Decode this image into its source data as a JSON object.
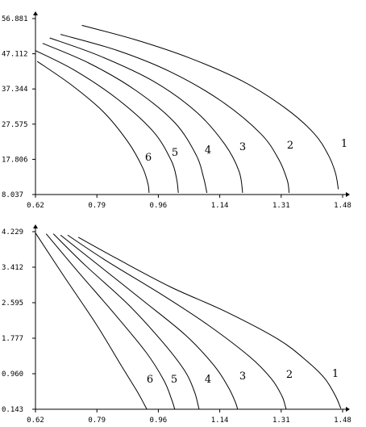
{
  "chart_data": [
    {
      "type": "line",
      "title": "",
      "xlabel": "",
      "ylabel": "",
      "xlim": [
        0.62,
        1.48
      ],
      "ylim": [
        8.037,
        56.881
      ],
      "x_tick_labels": [
        "0.62",
        "0.79",
        "0.96",
        "1.14",
        "1.31",
        "1.48"
      ],
      "y_tick_labels": [
        "8.037",
        "17.806",
        "27.575",
        "37.344",
        "47.112",
        "56.881"
      ],
      "grid": false,
      "legend": "none",
      "series": [
        {
          "name": "1",
          "x": [
            0.75,
            0.9,
            1.05,
            1.2,
            1.32,
            1.4,
            1.44,
            1.46,
            1.468
          ],
          "y": [
            55.0,
            51.0,
            46.0,
            39.5,
            32.0,
            25.0,
            19.0,
            14.0,
            9.5
          ]
        },
        {
          "name": "2",
          "x": [
            0.69,
            0.85,
            1.0,
            1.14,
            1.25,
            1.3,
            1.325,
            1.33
          ],
          "y": [
            52.5,
            48.0,
            42.0,
            34.0,
            25.0,
            18.0,
            12.0,
            8.5
          ]
        },
        {
          "name": "3",
          "x": [
            0.66,
            0.8,
            0.95,
            1.07,
            1.15,
            1.19,
            1.2
          ],
          "y": [
            51.5,
            46.5,
            39.5,
            31.0,
            22.0,
            14.5,
            8.5
          ]
        },
        {
          "name": "4",
          "x": [
            0.64,
            0.77,
            0.9,
            1.01,
            1.07,
            1.09,
            1.1
          ],
          "y": [
            50.0,
            44.5,
            37.0,
            28.0,
            19.0,
            13.0,
            8.5
          ]
        },
        {
          "name": "5",
          "x": [
            0.62,
            0.73,
            0.85,
            0.95,
            1.0,
            1.015,
            1.02
          ],
          "y": [
            48.0,
            42.5,
            34.5,
            25.5,
            17.5,
            12.5,
            8.5
          ]
        },
        {
          "name": "6",
          "x": [
            0.625,
            0.72,
            0.81,
            0.88,
            0.92,
            0.935,
            0.938
          ],
          "y": [
            45.0,
            38.5,
            31.0,
            22.5,
            15.5,
            11.0,
            8.5
          ]
        }
      ]
    },
    {
      "type": "line",
      "title": "",
      "xlabel": "",
      "ylabel": "",
      "xlim": [
        0.62,
        1.48
      ],
      "ylim": [
        0.143,
        4.229
      ],
      "x_tick_labels": [
        "0.62",
        "0.79",
        "0.96",
        "1.14",
        "1.31",
        "1.48"
      ],
      "y_tick_labels": [
        "0.143",
        "0.960",
        "1.777",
        "2.595",
        "3.412",
        "4.229"
      ],
      "grid": false,
      "legend": "none",
      "series": [
        {
          "name": "1",
          "x": [
            0.74,
            0.85,
            1.0,
            1.15,
            1.3,
            1.38,
            1.43,
            1.46,
            1.475
          ],
          "y": [
            4.1,
            3.6,
            2.95,
            2.4,
            1.75,
            1.25,
            0.85,
            0.45,
            0.16
          ]
        },
        {
          "name": "2",
          "x": [
            0.71,
            0.82,
            0.97,
            1.1,
            1.22,
            1.28,
            1.31,
            1.32,
            1.322
          ],
          "y": [
            4.15,
            3.55,
            2.8,
            2.1,
            1.35,
            0.85,
            0.45,
            0.2,
            0.14
          ]
        },
        {
          "name": "3",
          "x": [
            0.69,
            0.79,
            0.92,
            1.04,
            1.12,
            1.16,
            1.18,
            1.186
          ],
          "y": [
            4.15,
            3.5,
            2.65,
            1.85,
            1.15,
            0.65,
            0.3,
            0.14
          ]
        },
        {
          "name": "4",
          "x": [
            0.67,
            0.76,
            0.88,
            0.98,
            1.04,
            1.065,
            1.075,
            1.078
          ],
          "y": [
            4.18,
            3.45,
            2.55,
            1.65,
            1.0,
            0.55,
            0.25,
            0.14
          ]
        },
        {
          "name": "5",
          "x": [
            0.65,
            0.74,
            0.84,
            0.93,
            0.98,
            1.002,
            1.01
          ],
          "y": [
            4.18,
            3.3,
            2.35,
            1.45,
            0.8,
            0.35,
            0.14
          ]
        },
        {
          "name": "6",
          "x": [
            0.62,
            0.7,
            0.79,
            0.86,
            0.905,
            0.925,
            0.932
          ],
          "y": [
            4.2,
            3.2,
            2.1,
            1.15,
            0.55,
            0.25,
            0.14
          ]
        }
      ]
    }
  ],
  "labels": {
    "top": [
      "1",
      "2",
      "3",
      "4",
      "5",
      "6"
    ],
    "bottom": [
      "1",
      "2",
      "3",
      "4",
      "5",
      "6"
    ]
  },
  "colors": {
    "line": "#000000",
    "background": "#ffffff"
  }
}
